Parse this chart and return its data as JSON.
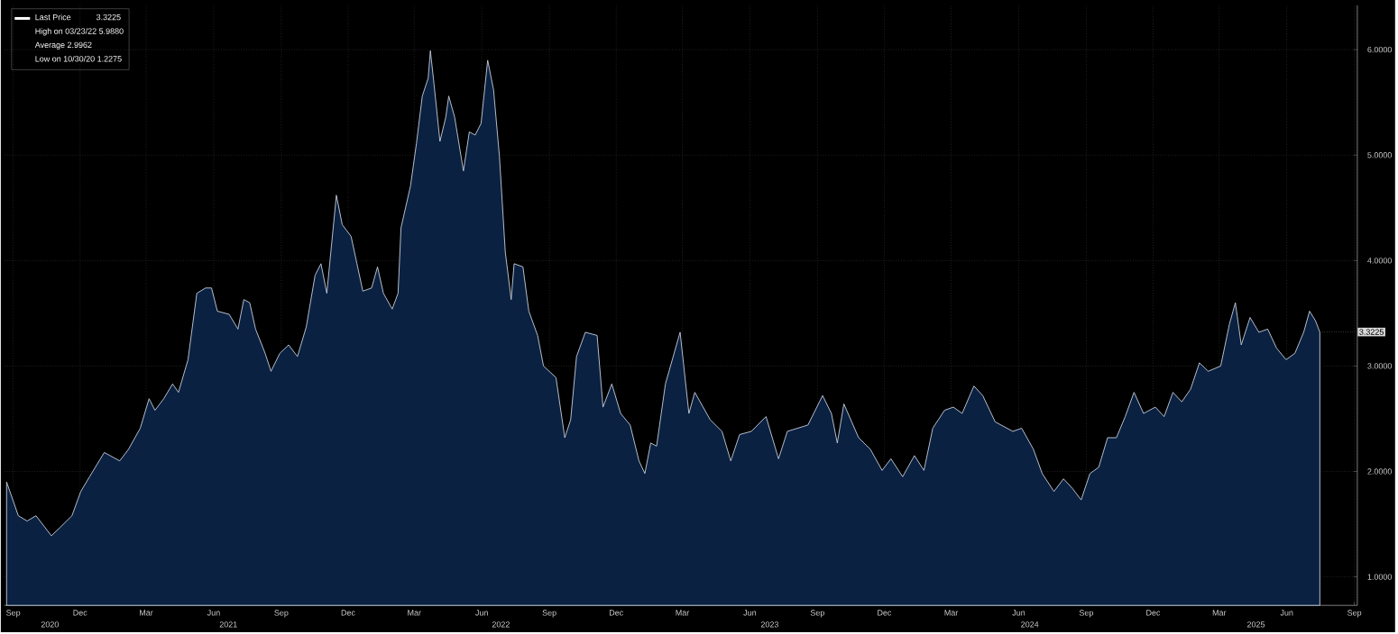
{
  "chart_data": {
    "type": "area",
    "x": [
      "2020-08-23",
      "2020-09-08",
      "2020-09-20",
      "2020-10-02",
      "2020-10-23",
      "2020-11-04",
      "2020-11-20",
      "2020-12-02",
      "2020-12-14",
      "2021-01-03",
      "2021-01-24",
      "2021-02-05",
      "2021-02-21",
      "2021-03-05",
      "2021-03-13",
      "2021-03-25",
      "2021-04-06",
      "2021-04-14",
      "2021-04-27",
      "2021-05-09",
      "2021-05-21",
      "2021-05-29",
      "2021-06-06",
      "2021-06-22",
      "2021-07-04",
      "2021-07-12",
      "2021-07-20",
      "2021-07-28",
      "2021-08-10",
      "2021-08-18",
      "2021-08-30",
      "2021-09-11",
      "2021-09-23",
      "2021-10-05",
      "2021-10-17",
      "2021-10-25",
      "2021-11-02",
      "2021-11-15",
      "2021-11-23",
      "2021-12-05",
      "2021-12-13",
      "2021-12-21",
      "2022-01-02",
      "2022-01-10",
      "2022-01-18",
      "2022-01-30",
      "2022-02-07",
      "2022-02-11",
      "2022-02-24",
      "2022-03-04",
      "2022-03-12",
      "2022-03-20",
      "2022-03-23",
      "2022-03-28",
      "2022-04-05",
      "2022-04-13",
      "2022-04-17",
      "2022-04-25",
      "2022-05-07",
      "2022-05-15",
      "2022-05-23",
      "2022-05-31",
      "2022-06-09",
      "2022-06-17",
      "2022-06-25",
      "2022-07-03",
      "2022-07-11",
      "2022-07-15",
      "2022-07-27",
      "2022-08-04",
      "2022-08-16",
      "2022-08-24",
      "2022-09-10",
      "2022-09-22",
      "2022-09-30",
      "2022-10-08",
      "2022-10-20",
      "2022-11-05",
      "2022-11-13",
      "2022-11-25",
      "2022-12-07",
      "2022-12-20",
      "2023-01-01",
      "2023-01-09",
      "2023-01-17",
      "2023-01-25",
      "2023-02-06",
      "2023-02-26",
      "2023-03-10",
      "2023-03-18",
      "2023-04-08",
      "2023-04-24",
      "2023-05-06",
      "2023-05-18",
      "2023-06-03",
      "2023-06-23",
      "2023-07-10",
      "2023-07-22",
      "2023-08-19",
      "2023-09-08",
      "2023-09-20",
      "2023-09-28",
      "2023-10-07",
      "2023-10-27",
      "2023-11-12",
      "2023-11-28",
      "2023-12-10",
      "2023-12-26",
      "2024-01-11",
      "2024-01-24",
      "2024-02-05",
      "2024-02-21",
      "2024-03-04",
      "2024-03-16",
      "2024-04-01",
      "2024-04-13",
      "2024-04-30",
      "2024-05-24",
      "2024-06-05",
      "2024-06-21",
      "2024-07-03",
      "2024-07-19",
      "2024-08-01",
      "2024-08-13",
      "2024-08-25",
      "2024-09-06",
      "2024-09-18",
      "2024-09-30",
      "2024-10-12",
      "2024-10-24",
      "2024-11-05",
      "2024-11-18",
      "2024-12-04",
      "2024-12-16",
      "2024-12-28",
      "2025-01-09",
      "2025-01-21",
      "2025-02-02",
      "2025-02-14",
      "2025-03-03",
      "2025-03-15",
      "2025-03-23",
      "2025-03-31",
      "2025-04-12",
      "2025-04-24",
      "2025-05-06",
      "2025-05-18",
      "2025-05-31",
      "2025-06-12",
      "2025-06-24",
      "2025-07-02",
      "2025-07-10",
      "2025-07-16"
    ],
    "series": [
      {
        "name": "Last Price",
        "color": "#0b2142",
        "values": [
          1.9,
          1.58,
          1.53,
          1.58,
          1.39,
          1.47,
          1.58,
          1.81,
          1.95,
          2.18,
          2.1,
          2.21,
          2.41,
          2.69,
          2.58,
          2.69,
          2.83,
          2.75,
          3.06,
          3.69,
          3.74,
          3.74,
          3.52,
          3.49,
          3.35,
          3.63,
          3.6,
          3.35,
          3.12,
          2.95,
          3.12,
          3.2,
          3.09,
          3.37,
          3.86,
          3.97,
          3.69,
          4.62,
          4.34,
          4.23,
          3.97,
          3.71,
          3.74,
          3.94,
          3.69,
          3.54,
          3.69,
          4.31,
          4.71,
          5.11,
          5.56,
          5.73,
          5.99,
          5.67,
          5.13,
          5.36,
          5.56,
          5.36,
          4.85,
          5.22,
          5.19,
          5.3,
          5.9,
          5.62,
          4.99,
          4.08,
          3.63,
          3.97,
          3.94,
          3.52,
          3.29,
          3.0,
          2.89,
          2.32,
          2.49,
          3.09,
          3.32,
          3.29,
          2.61,
          2.83,
          2.55,
          2.44,
          2.1,
          1.98,
          2.27,
          2.24,
          2.83,
          3.32,
          2.55,
          2.75,
          2.49,
          2.38,
          2.1,
          2.35,
          2.38,
          2.52,
          2.12,
          2.38,
          2.44,
          2.72,
          2.55,
          2.27,
          2.64,
          2.32,
          2.21,
          2.01,
          2.12,
          1.95,
          2.15,
          2.01,
          2.41,
          2.58,
          2.61,
          2.55,
          2.81,
          2.72,
          2.47,
          2.38,
          2.41,
          2.21,
          1.98,
          1.81,
          1.93,
          1.84,
          1.73,
          1.98,
          2.04,
          2.32,
          2.32,
          2.52,
          2.75,
          2.55,
          2.61,
          2.52,
          2.75,
          2.66,
          2.78,
          3.03,
          2.95,
          3.0,
          3.4,
          3.6,
          3.2,
          3.46,
          3.32,
          3.35,
          3.17,
          3.06,
          3.12,
          3.32,
          3.52,
          3.43,
          3.32
        ]
      }
    ],
    "xlim": [
      "2020-08-20",
      "2025-09-05"
    ],
    "xticks": [
      {
        "value": "2020-09-01",
        "label": "Sep"
      },
      {
        "value": "2020-12-01",
        "label": "Dec"
      },
      {
        "value": "2021-03-01",
        "label": "Mar"
      },
      {
        "value": "2021-06-01",
        "label": "Jun"
      },
      {
        "value": "2021-09-01",
        "label": "Sep"
      },
      {
        "value": "2021-12-01",
        "label": "Dec"
      },
      {
        "value": "2022-03-01",
        "label": "Mar"
      },
      {
        "value": "2022-06-01",
        "label": "Jun"
      },
      {
        "value": "2022-09-01",
        "label": "Sep"
      },
      {
        "value": "2022-12-01",
        "label": "Dec"
      },
      {
        "value": "2023-03-01",
        "label": "Mar"
      },
      {
        "value": "2023-06-01",
        "label": "Jun"
      },
      {
        "value": "2023-09-01",
        "label": "Sep"
      },
      {
        "value": "2023-12-01",
        "label": "Dec"
      },
      {
        "value": "2024-03-01",
        "label": "Mar"
      },
      {
        "value": "2024-06-01",
        "label": "Jun"
      },
      {
        "value": "2024-09-01",
        "label": "Sep"
      },
      {
        "value": "2024-12-01",
        "label": "Dec"
      },
      {
        "value": "2025-03-01",
        "label": "Mar"
      },
      {
        "value": "2025-06-01",
        "label": "Jun"
      },
      {
        "value": "2025-09-01",
        "label": "Sep"
      }
    ],
    "x2lim": [
      "2020-08-20",
      "2025-09-05"
    ],
    "x2ticks": [
      {
        "value": "2020-10-21",
        "label": "2020"
      },
      {
        "value": "2021-06-21",
        "label": "2021"
      },
      {
        "value": "2022-06-27",
        "label": "2022"
      },
      {
        "value": "2023-06-28",
        "label": "2023"
      },
      {
        "value": "2024-06-16",
        "label": "2024"
      },
      {
        "value": "2025-04-20",
        "label": "2025"
      }
    ],
    "ylim": [
      0.73,
      6.42
    ],
    "yticks": [
      {
        "value": 1,
        "label": "1.0000"
      },
      {
        "value": 2,
        "label": "2.0000"
      },
      {
        "value": 3,
        "label": "3.0000"
      },
      {
        "value": 4,
        "label": "4.0000"
      },
      {
        "value": 5,
        "label": "5.0000"
      },
      {
        "value": 6,
        "label": "6.0000"
      }
    ],
    "annotations": [
      {
        "text": "3.3225",
        "x": "2025-07-16",
        "y": 3.3225
      },
      "3.3225",
      "High on 03/23/22 5.9880",
      "Average 2.9962",
      "Low on 10/30/20 1.2275"
    ],
    "grid": true,
    "legend": "top left",
    "marker": "none",
    "line_style": "solid"
  }
}
